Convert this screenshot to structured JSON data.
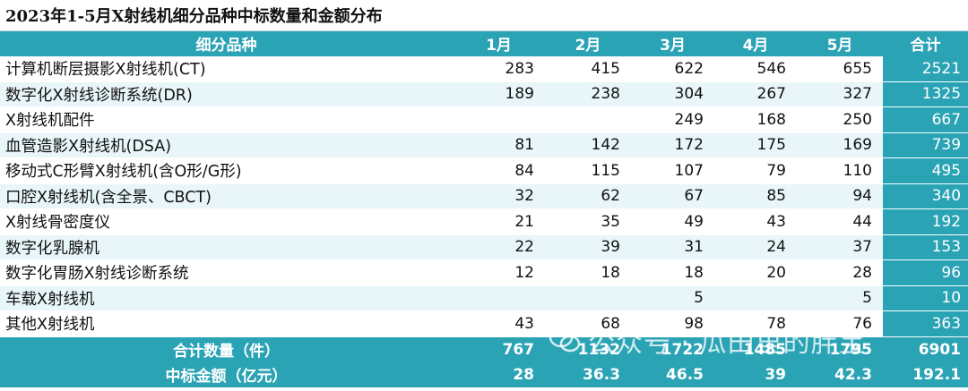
{
  "title": "2023年1-5月X射线机细分品种中标数量和金额分布",
  "headers": [
    "细分品种",
    "1月",
    "2月",
    "3月",
    "4月",
    "5月",
    "合计"
  ],
  "rows": [
    {
      "name": "计算机断层摄影X射线机(CT)",
      "m1": "283",
      "m2": "415",
      "m3": "622",
      "m4": "546",
      "m5": "655",
      "total": "2521"
    },
    {
      "name": "数字化X射线诊断系统(DR)",
      "m1": "189",
      "m2": "238",
      "m3": "304",
      "m4": "267",
      "m5": "327",
      "total": "1325"
    },
    {
      "name": "X射线机配件",
      "m1": "",
      "m2": "",
      "m3": "249",
      "m4": "168",
      "m5": "250",
      "total": "667"
    },
    {
      "name": "血管造影X射线机(DSA)",
      "m1": "81",
      "m2": "142",
      "m3": "172",
      "m4": "175",
      "m5": "169",
      "total": "739"
    },
    {
      "name": "移动式C形臂X射线机(含O形/G形)",
      "m1": "84",
      "m2": "115",
      "m3": "107",
      "m4": "79",
      "m5": "110",
      "total": "495"
    },
    {
      "name": "口腔X射线机(含全景、CBCT)",
      "m1": "32",
      "m2": "62",
      "m3": "67",
      "m4": "85",
      "m5": "94",
      "total": "340"
    },
    {
      "name": "X射线骨密度仪",
      "m1": "21",
      "m2": "35",
      "m3": "49",
      "m4": "43",
      "m5": "44",
      "total": "192"
    },
    {
      "name": "数字化乳腺机",
      "m1": "22",
      "m2": "39",
      "m3": "31",
      "m4": "24",
      "m5": "37",
      "total": "153"
    },
    {
      "name": "数字化胃肠X射线诊断系统",
      "m1": "12",
      "m2": "18",
      "m3": "18",
      "m4": "20",
      "m5": "28",
      "total": "96"
    },
    {
      "name": "车载X射线机",
      "m1": "",
      "m2": "",
      "m3": "5",
      "m4": "",
      "m5": "5",
      "total": "10"
    },
    {
      "name": "其他X射线机",
      "m1": "43",
      "m2": "68",
      "m3": "98",
      "m4": "78",
      "m5": "76",
      "total": "363"
    }
  ],
  "summary": [
    {
      "name": "合计数量（件）",
      "m1": "767",
      "m2": "1132",
      "m3": "1722",
      "m4": "1485",
      "m5": "1795",
      "total": "6901"
    },
    {
      "name": "中标金额（亿元）",
      "m1": "28",
      "m2": "36.3",
      "m3": "46.5",
      "m4": "39",
      "m5": "42.3",
      "total": "192.1"
    }
  ],
  "watermark": {
    "text": "公众号 · 瓜田里的胖宝",
    "icon": "wechat-icon"
  },
  "colors": {
    "header_bg": "#2aa3b5",
    "stripe_bg": "#e8f6f9",
    "text": "#111111"
  }
}
